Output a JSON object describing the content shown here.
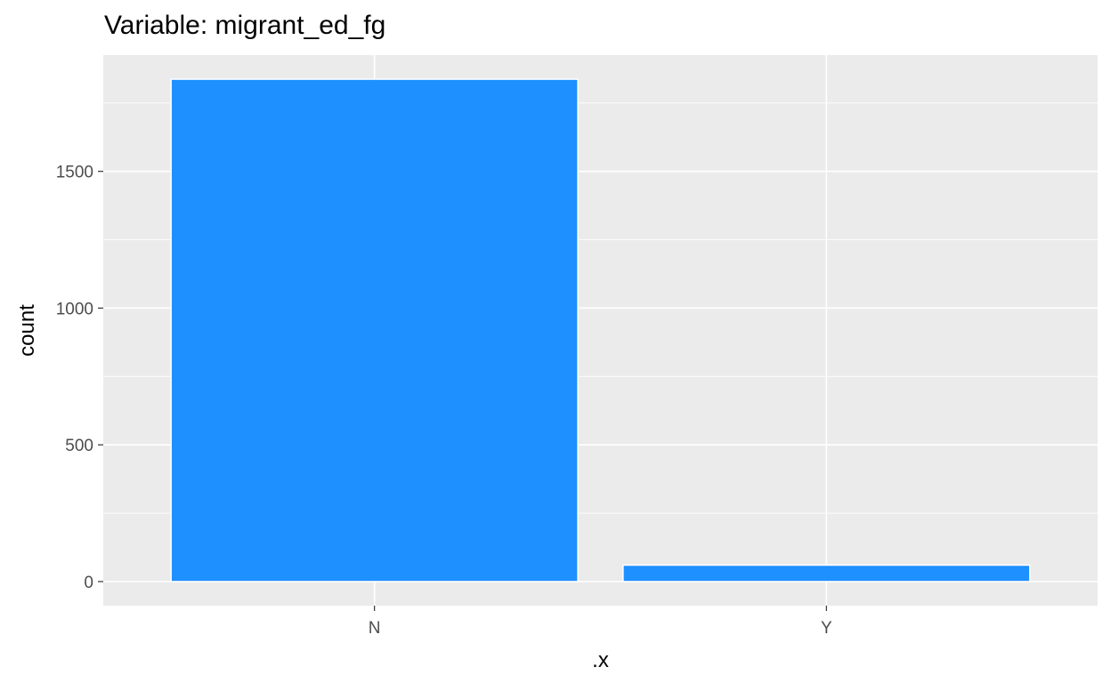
{
  "chart_data": {
    "type": "bar",
    "title": "Variable: migrant_ed_fg",
    "xlabel": ".x",
    "ylabel": "count",
    "categories": [
      "N",
      "Y"
    ],
    "values": [
      1837,
      60
    ],
    "ylim": [
      -88,
      1925
    ],
    "yticks": [
      0,
      500,
      1000,
      1500
    ],
    "ytick_labels": [
      "0",
      "500",
      "1000",
      "1500"
    ],
    "grid": true,
    "legend": "none",
    "colors": {
      "bar_fill": "#1E90FF",
      "bar_outline": "#FFFFFF",
      "panel_background": "#EBEBEB",
      "grid": "#FFFFFF",
      "tick_text": "#4D4D4D",
      "axis_text": "#000000"
    }
  }
}
